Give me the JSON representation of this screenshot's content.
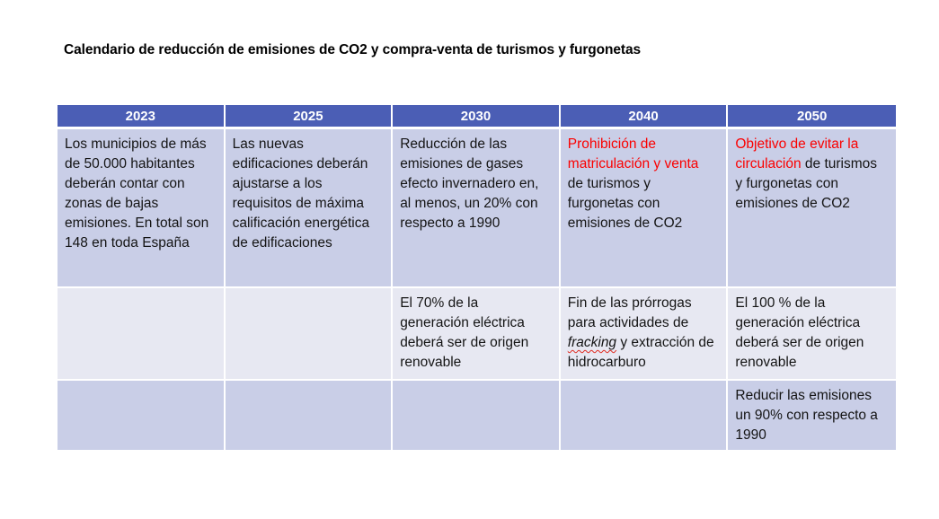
{
  "title": "Calendario de reducción de emisiones de CO2 y compra-venta de turismos y furgonetas",
  "colors": {
    "header_bg": "#4B5EB5",
    "header_text": "#FFFFFF",
    "band_dark": "#C9CEE7",
    "band_light": "#E7E8F2",
    "body_text": "#141414",
    "highlight_red": "#FB0000",
    "page_bg": "#FFFFFF"
  },
  "table": {
    "columns": [
      "2023",
      "2025",
      "2030",
      "2040",
      "2050"
    ],
    "rows": [
      {
        "band": "dark",
        "cells": [
          {
            "segments": [
              {
                "text": "Los municipios de más de 50.000 habitantes deberán contar con zonas de bajas emisiones. En total son 148 en toda España"
              }
            ]
          },
          {
            "segments": [
              {
                "text": "Las nuevas edificaciones deberán ajustarse a los requisitos de máxima calificación energética de edificaciones"
              }
            ]
          },
          {
            "segments": [
              {
                "text": "Reducción de las emisiones de gases efecto invernadero en, al menos, un 20% con respecto a 1990"
              }
            ]
          },
          {
            "segments": [
              {
                "text": "Prohibición de matriculación y venta",
                "red": true
              },
              {
                "text": " de turismos y furgonetas con emisiones de CO2"
              }
            ]
          },
          {
            "segments": [
              {
                "text": "Objetivo de evitar la circulación",
                "red": true
              },
              {
                "text": " de turismos y furgonetas con emisiones de CO2"
              }
            ]
          }
        ]
      },
      {
        "band": "light",
        "cells": [
          {
            "segments": []
          },
          {
            "segments": []
          },
          {
            "segments": [
              {
                "text": "El 70% de la generación eléctrica deberá ser de origen renovable"
              }
            ]
          },
          {
            "segments": [
              {
                "text": "Fin de las prórrogas para actividades de "
              },
              {
                "text": "fracking",
                "italic": true,
                "wavy": true
              },
              {
                "text": " y extracción de hidrocarburo"
              }
            ]
          },
          {
            "segments": [
              {
                "text": "El 100 % de la generación eléctrica deberá ser de origen renovable"
              }
            ]
          }
        ]
      },
      {
        "band": "dark",
        "cells": [
          {
            "segments": []
          },
          {
            "segments": []
          },
          {
            "segments": []
          },
          {
            "segments": []
          },
          {
            "segments": [
              {
                "text": "Reducir las emisiones un 90% con respecto a 1990"
              }
            ]
          }
        ]
      }
    ]
  }
}
